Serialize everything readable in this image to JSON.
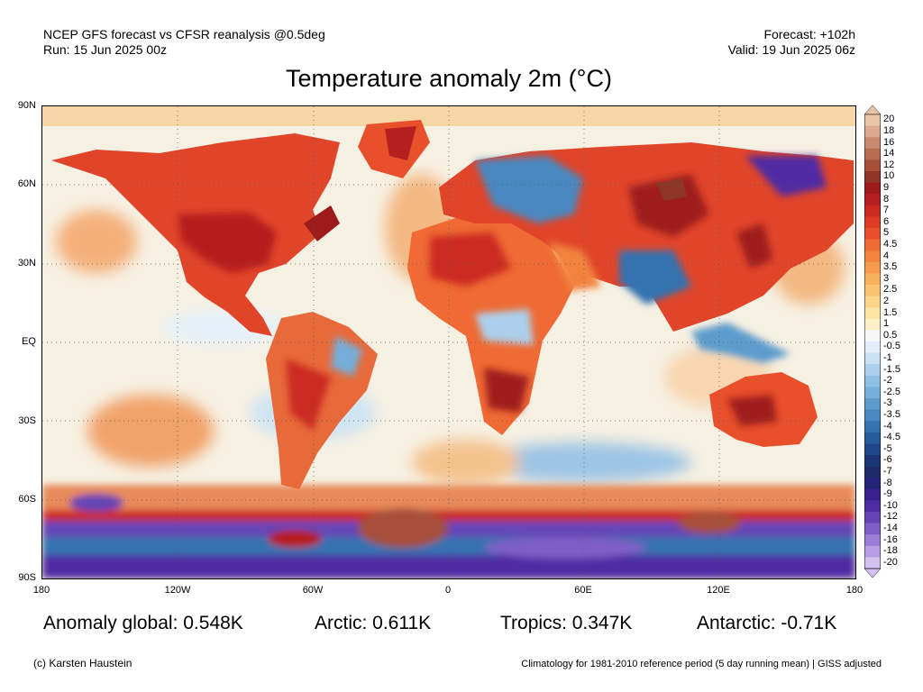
{
  "header": {
    "model_line": "NCEP GFS forecast vs CFSR reanalysis @0.5deg",
    "run_line": "Run: 15 Jun 2025 00z",
    "forecast_line": "Forecast: +102h",
    "valid_line": "Valid: 19 Jun 2025 06z"
  },
  "title": "Temperature anomaly 2m (°C)",
  "axes": {
    "lat_labels": [
      "90N",
      "60N",
      "30N",
      "EQ",
      "30S",
      "60S",
      "90S"
    ],
    "lon_labels": [
      "180",
      "120W",
      "60W",
      "0",
      "60E",
      "120E",
      "180"
    ]
  },
  "colorbar": {
    "labels": [
      "20",
      "18",
      "16",
      "14",
      "12",
      "10",
      "9",
      "8",
      "7",
      "6",
      "5",
      "4.5",
      "4",
      "3.5",
      "3",
      "2.5",
      "2",
      "1.5",
      "1",
      "0.5",
      "-0.5",
      "-1",
      "-1.5",
      "-2",
      "-2.5",
      "-3",
      "-3.5",
      "-4",
      "-4.5",
      "-5",
      "-6",
      "-7",
      "-8",
      "-9",
      "-10",
      "-12",
      "-14",
      "-16",
      "-18",
      "-20"
    ],
    "colors": [
      "#eac5a8",
      "#dba890",
      "#c98a6f",
      "#b86d53",
      "#a6503a",
      "#8e3626",
      "#9e1b1b",
      "#b61f1f",
      "#cc2a21",
      "#de3b26",
      "#e8502c",
      "#ef6a34",
      "#f3823d",
      "#f69a4b",
      "#f8b05c",
      "#fac370",
      "#fcd588",
      "#fde4a3",
      "#fdf0c8",
      "#f6f6f6",
      "#e3eef8",
      "#c8e0f2",
      "#acd0eb",
      "#8fbfe3",
      "#75aed9",
      "#5d9bcd",
      "#4887c0",
      "#3572b0",
      "#265c9e",
      "#1e478b",
      "#1b3577",
      "#1c2a6a",
      "#25227a",
      "#38208e",
      "#4f2ca3",
      "#6644b6",
      "#7f5fc7",
      "#9a7ed6",
      "#b59ee3",
      "#d2c2f0"
    ]
  },
  "stats": {
    "global": "Anomaly global: 0.548K",
    "arctic": "Arctic: 0.611K",
    "tropics": "Tropics: 0.347K",
    "antarctic": "Antarctic: -0.71K"
  },
  "footer": {
    "credit": "(c) Karsten Haustein",
    "note": "Climatology for 1981-2010 reference period (5 day running mean) | GISS adjusted"
  }
}
